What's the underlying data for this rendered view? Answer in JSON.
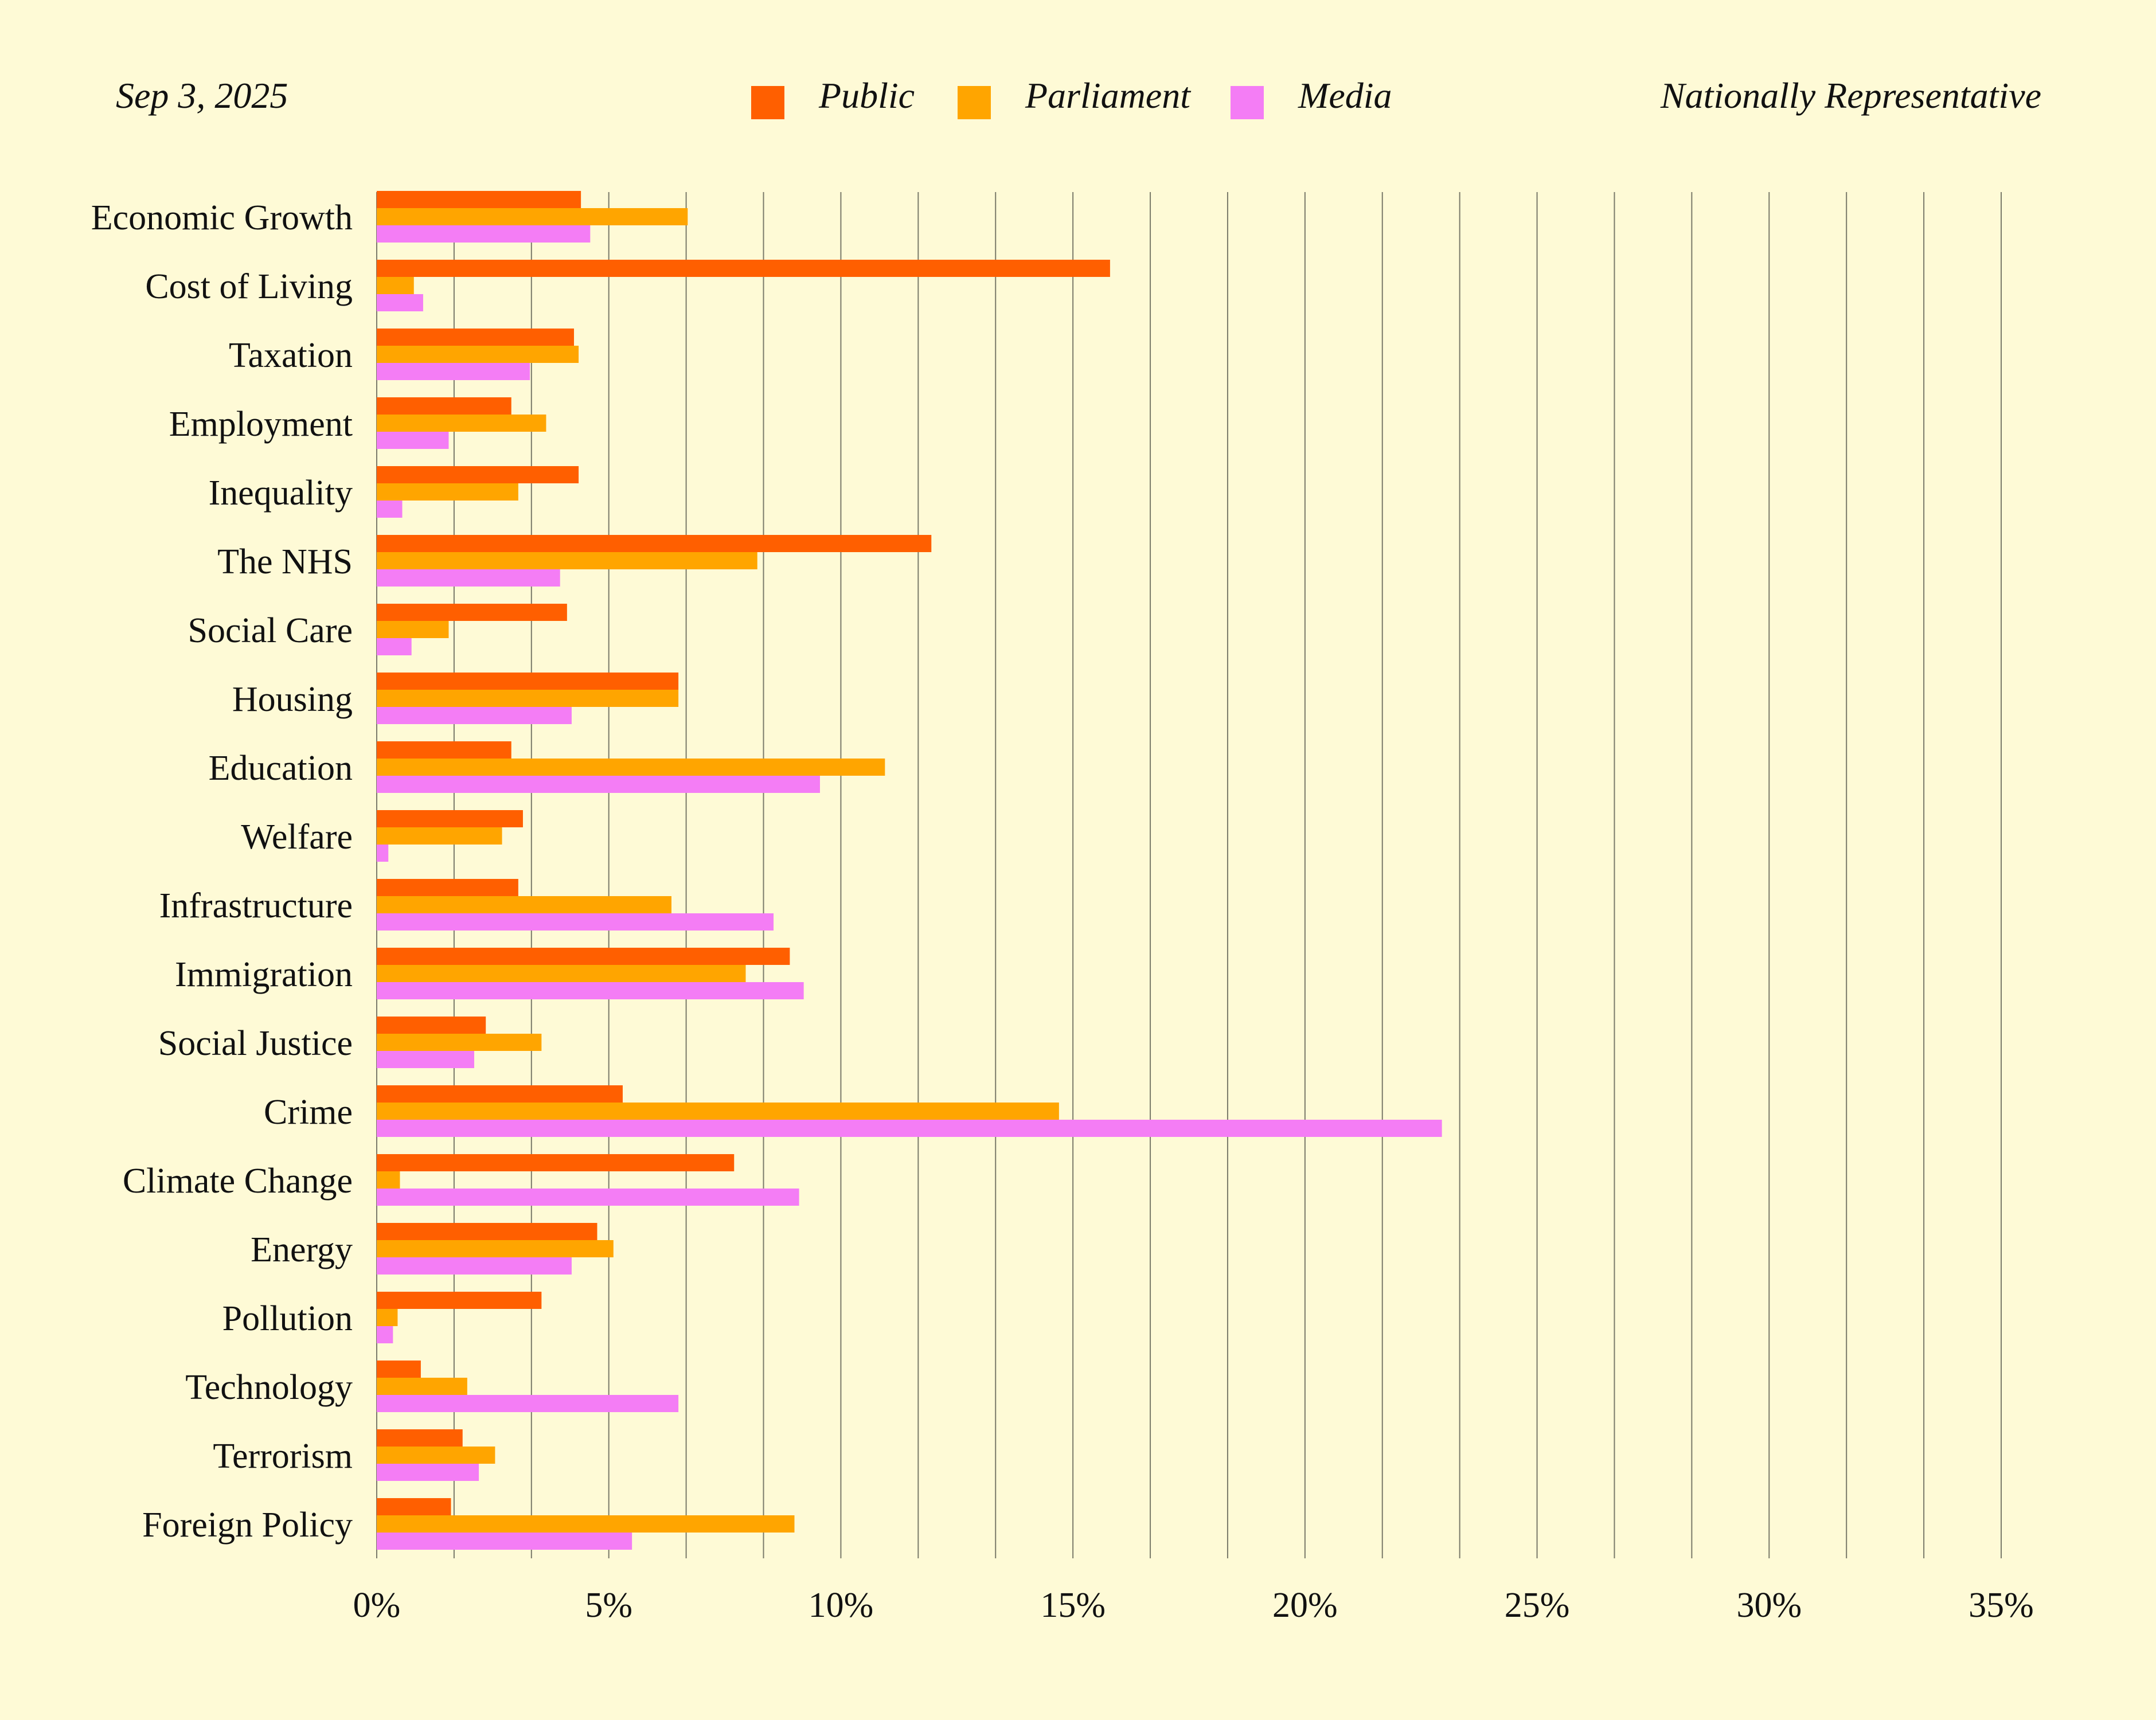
{
  "header": {
    "date": "Sep 3, 2025",
    "sample": "Nationally Representative"
  },
  "colors": {
    "background": "#fefad6",
    "public": "#ff5f00",
    "parliament": "#ffa500",
    "media": "#f47df5",
    "grid": "#7a7a6a"
  },
  "legend": [
    {
      "label": "Public",
      "color": "#ff5f00"
    },
    {
      "label": "Parliament",
      "color": "#ffa500"
    },
    {
      "label": "Media",
      "color": "#f47df5"
    }
  ],
  "chart_data": {
    "type": "bar",
    "orientation": "horizontal",
    "categories": [
      "Economic Growth",
      "Cost of Living",
      "Taxation",
      "Employment",
      "Inequality",
      "The NHS",
      "Social Care",
      "Housing",
      "Education",
      "Welfare",
      "Infrastructure",
      "Immigration",
      "Social Justice",
      "Crime",
      "Climate Change",
      "Energy",
      "Pollution",
      "Technology",
      "Terrorism",
      "Foreign Policy"
    ],
    "series": [
      {
        "name": "Public",
        "color": "#ff5f00",
        "values": [
          4.4,
          15.8,
          4.25,
          2.9,
          4.35,
          11.95,
          4.1,
          6.5,
          2.9,
          3.15,
          3.05,
          8.9,
          2.35,
          5.3,
          7.7,
          4.75,
          3.55,
          0.95,
          1.85,
          1.6
        ]
      },
      {
        "name": "Parliament",
        "color": "#ffa500",
        "values": [
          6.7,
          0.8,
          4.35,
          3.65,
          3.05,
          8.2,
          1.55,
          6.5,
          10.95,
          2.7,
          6.35,
          7.95,
          3.55,
          14.7,
          0.5,
          5.1,
          0.45,
          1.95,
          2.55,
          9.0
        ]
      },
      {
        "name": "Media",
        "color": "#f47df5",
        "values": [
          4.6,
          1.0,
          3.3,
          1.55,
          0.55,
          3.95,
          0.75,
          4.2,
          9.55,
          0.25,
          8.55,
          9.2,
          2.1,
          22.95,
          9.1,
          4.2,
          0.35,
          6.5,
          2.2,
          5.5
        ]
      }
    ],
    "xlim": [
      0,
      35
    ],
    "xticks": [
      0,
      5,
      10,
      15,
      20,
      25,
      30,
      35
    ],
    "xtick_labels": [
      "0%",
      "5%",
      "10%",
      "15%",
      "20%",
      "25%",
      "30%",
      "35%"
    ],
    "grid": "vertical, every 1.67%",
    "legend_position": "top-center"
  }
}
